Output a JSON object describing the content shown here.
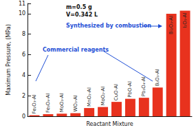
{
  "chart_data": {
    "type": "bar",
    "y_label": "Maximum Pressure, (MPa)",
    "x_label": "Reactant Mixture",
    "categories": [
      "Fe₂O₃-Al",
      "Fe₃O₄-Al",
      "MoO₃-Al",
      "WO₃-Al",
      "MnO₂-Al",
      "MoO₂-Al",
      "CuO-Al",
      "PbO-Al",
      "Pb₃O₄-Al",
      "B₂O₃-Al",
      "Bi₂O₃-Al",
      "I₂O₅-Al"
    ],
    "values": [
      0.1,
      0.2,
      0.25,
      0.3,
      0.8,
      0.9,
      1.4,
      1.7,
      1.8,
      2.8,
      10.0,
      10.3
    ],
    "color": "#e8321e",
    "ylim": [
      0,
      11
    ],
    "yticks": [
      0,
      2,
      4,
      6,
      8,
      10
    ],
    "grid": false,
    "annotations": [
      "m=0.5 g",
      "V=0.342 L",
      "Synthesized by combustion",
      "Commercial reagents"
    ]
  }
}
